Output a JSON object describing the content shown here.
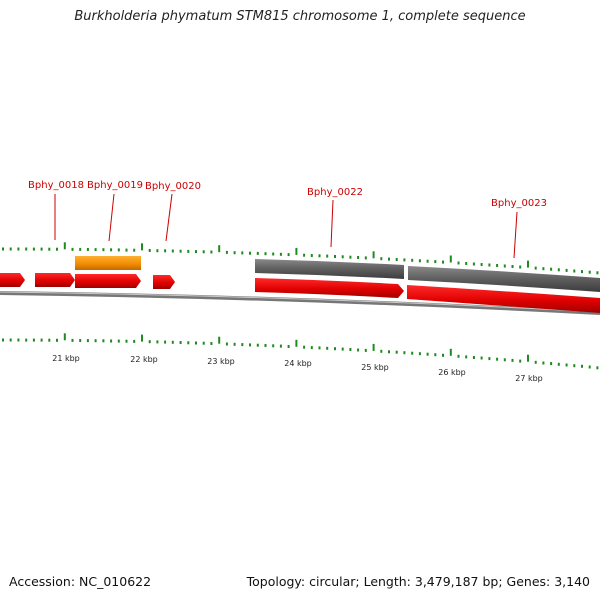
{
  "title": "Burkholderia phymatum STM815 chromosome 1, complete sequence",
  "footer": {
    "accession": "Accession: NC_010622",
    "summary": "Topology: circular; Length: 3,479,187 bp; Genes: 3,140"
  },
  "scale_labels": [
    "21 kbp",
    "22 kbp",
    "23 kbp",
    "24 kbp",
    "25 kbp",
    "26 kbp",
    "27 kbp"
  ],
  "gene_labels": [
    "Bphy_0018",
    "Bphy_0019",
    "Bphy_0020",
    "Bphy_0022",
    "Bphy_0023"
  ],
  "colors": {
    "cds": "#ff0000",
    "cds_dark": "#b80000",
    "gene": "#6e6e6e",
    "highlight": "#ff9a00",
    "backbone": "#8c8c8c",
    "tick": "#1f8a1f",
    "label": "#cc0000"
  }
}
